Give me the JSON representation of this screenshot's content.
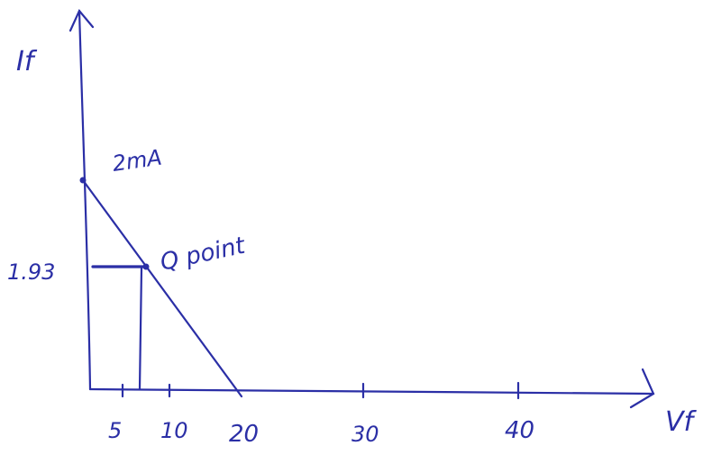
{
  "axes": {
    "y_label": "If",
    "x_label": "Vf"
  },
  "x_ticks": [
    "5",
    "10",
    "20",
    "30",
    "40"
  ],
  "annotations": {
    "saturation_current": "2mA",
    "operating_point": "Q point",
    "q_current": "1.93"
  }
}
